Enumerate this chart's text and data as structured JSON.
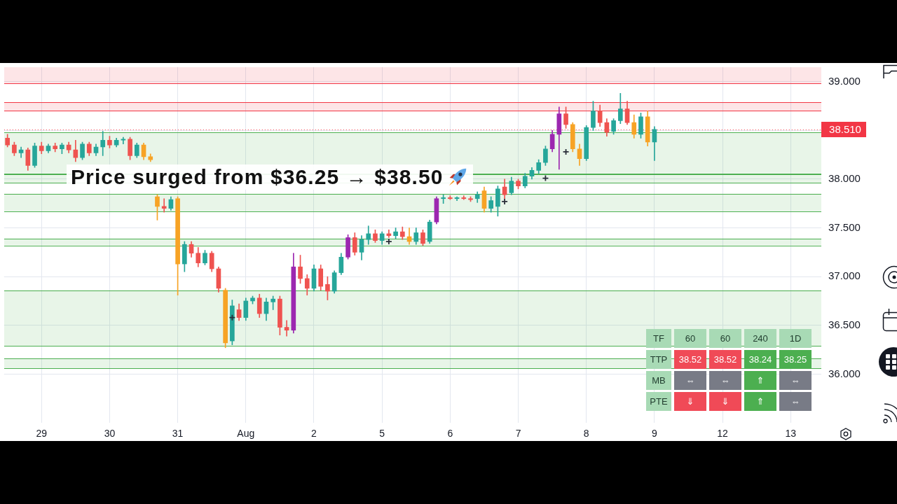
{
  "chart_data": [
    {
      "type": "candlestick",
      "categories": [
        null,
        null,
        null,
        null,
        null,
        "29",
        null,
        null,
        null,
        null,
        null,
        null,
        null,
        null,
        null,
        "30",
        null,
        null,
        null,
        null,
        null,
        null,
        null,
        null,
        null,
        "31",
        null,
        null,
        null,
        null,
        null,
        null,
        null,
        null,
        null,
        "Aug",
        null,
        null,
        null,
        null,
        null,
        null,
        null,
        null,
        null,
        "2",
        null,
        null,
        null,
        null,
        null,
        null,
        null,
        null,
        null,
        "5",
        null,
        null,
        null,
        null,
        null,
        null,
        null,
        null,
        null,
        "6",
        null,
        null,
        null,
        null,
        null,
        null,
        null,
        null,
        null,
        "7",
        null,
        null,
        null,
        null,
        null,
        null,
        null,
        null,
        null,
        "8",
        null,
        null,
        null,
        null,
        null,
        null,
        null,
        null,
        null,
        "9",
        null,
        null,
        null,
        null,
        null,
        null,
        null,
        null,
        null,
        "12",
        null,
        null,
        null,
        null,
        null,
        null,
        null,
        null,
        null,
        "13",
        null,
        null,
        null,
        null
      ],
      "ohlc": [
        [
          38.42,
          38.46,
          38.33,
          38.35
        ],
        [
          38.35,
          38.38,
          38.24,
          38.27
        ],
        [
          38.27,
          38.33,
          38.22,
          38.3
        ],
        [
          38.3,
          38.32,
          38.09,
          38.14
        ],
        [
          38.14,
          38.37,
          38.12,
          38.34
        ],
        [
          38.34,
          38.38,
          38.26,
          38.29
        ],
        [
          38.29,
          38.36,
          38.27,
          38.34
        ],
        [
          38.34,
          38.37,
          38.28,
          38.31
        ],
        [
          38.31,
          38.37,
          38.26,
          38.35
        ],
        [
          38.35,
          38.38,
          38.27,
          38.3
        ],
        [
          38.3,
          38.4,
          38.18,
          38.22
        ],
        [
          38.22,
          38.38,
          38.2,
          38.36
        ],
        [
          38.36,
          38.38,
          38.24,
          38.27
        ],
        [
          38.27,
          38.36,
          38.24,
          38.33
        ],
        [
          38.33,
          38.49,
          38.24,
          38.4
        ],
        [
          38.4,
          38.44,
          38.32,
          38.35
        ],
        [
          38.35,
          38.42,
          38.33,
          38.4
        ],
        [
          38.4,
          38.43,
          38.36,
          38.41
        ],
        [
          38.41,
          38.43,
          38.2,
          38.24
        ],
        [
          38.24,
          38.37,
          38.22,
          38.35
        ],
        [
          38.35,
          38.37,
          38.2,
          38.23
        ],
        [
          38.23,
          38.26,
          38.18,
          38.2
        ],
        [
          37.82,
          37.84,
          37.58,
          37.72
        ],
        [
          37.72,
          37.8,
          37.66,
          37.7
        ],
        [
          37.7,
          37.82,
          37.68,
          37.79
        ],
        [
          37.8,
          37.82,
          36.81,
          37.13
        ],
        [
          37.13,
          37.36,
          37.05,
          37.33
        ],
        [
          37.33,
          37.36,
          37.2,
          37.24
        ],
        [
          37.24,
          37.3,
          37.1,
          37.14
        ],
        [
          37.14,
          37.27,
          37.12,
          37.24
        ],
        [
          37.24,
          37.26,
          37.05,
          37.08
        ],
        [
          37.08,
          37.1,
          36.84,
          36.88
        ],
        [
          36.86,
          36.88,
          36.27,
          36.32
        ],
        [
          36.34,
          36.76,
          36.3,
          36.7
        ],
        [
          36.66,
          36.72,
          36.55,
          36.58
        ],
        [
          36.58,
          36.78,
          36.55,
          36.75
        ],
        [
          36.75,
          36.8,
          36.72,
          36.78
        ],
        [
          36.78,
          36.82,
          36.58,
          36.62
        ],
        [
          36.62,
          36.78,
          36.55,
          36.74
        ],
        [
          36.74,
          36.8,
          36.66,
          36.77
        ],
        [
          36.77,
          36.8,
          36.4,
          36.48
        ],
        [
          36.48,
          36.55,
          36.39,
          36.45
        ],
        [
          36.45,
          37.24,
          36.42,
          37.1
        ],
        [
          37.1,
          37.22,
          36.93,
          36.98
        ],
        [
          36.98,
          37.02,
          36.81,
          36.88
        ],
        [
          36.88,
          37.12,
          36.85,
          37.08
        ],
        [
          37.08,
          37.12,
          36.86,
          36.9
        ],
        [
          36.92,
          37,
          36.76,
          36.85
        ],
        [
          36.85,
          37.06,
          36.83,
          37.04
        ],
        [
          37.04,
          37.24,
          37.02,
          37.2
        ],
        [
          37.2,
          37.43,
          37.18,
          37.4
        ],
        [
          37.4,
          37.45,
          37.22,
          37.25
        ],
        [
          37.25,
          37.42,
          37.17,
          37.38
        ],
        [
          37.38,
          37.52,
          37.33,
          37.44
        ],
        [
          37.44,
          37.48,
          37.35,
          37.37
        ],
        [
          37.37,
          37.46,
          37.33,
          37.44
        ],
        [
          37.44,
          37.48,
          37.4,
          37.42
        ],
        [
          37.42,
          37.5,
          37.39,
          37.46
        ],
        [
          37.46,
          37.51,
          37.38,
          37.41
        ],
        [
          37.41,
          37.5,
          37.33,
          37.36
        ],
        [
          37.36,
          37.5,
          37.33,
          37.45
        ],
        [
          37.45,
          37.48,
          37.32,
          37.34
        ],
        [
          37.36,
          37.58,
          37.34,
          37.56
        ],
        [
          37.56,
          37.82,
          37.54,
          37.8
        ],
        [
          37.8,
          37.84,
          37.75,
          37.81
        ],
        [
          37.81,
          37.83,
          37.79,
          37.8
        ],
        [
          37.8,
          37.82,
          37.78,
          37.81
        ],
        [
          37.81,
          37.83,
          37.79,
          37.8
        ],
        [
          37.8,
          37.82,
          37.77,
          37.79
        ],
        [
          37.8,
          37.87,
          37.76,
          37.84
        ],
        [
          37.88,
          37.92,
          37.66,
          37.7
        ],
        [
          37.7,
          37.82,
          37.66,
          37.78
        ],
        [
          37.72,
          37.93,
          37.62,
          37.9
        ],
        [
          37.92,
          38,
          37.8,
          37.84
        ],
        [
          37.86,
          38.02,
          37.84,
          37.98
        ],
        [
          37.98,
          38,
          37.9,
          37.93
        ],
        [
          37.93,
          38.06,
          37.91,
          38.03
        ],
        [
          38.03,
          38.12,
          38,
          38.09
        ],
        [
          38.09,
          38.2,
          38.06,
          38.17
        ],
        [
          38.17,
          38.34,
          38.14,
          38.31
        ],
        [
          38.31,
          38.5,
          38.28,
          38.46
        ],
        [
          38.46,
          38.74,
          38.1,
          38.67
        ],
        [
          38.67,
          38.74,
          38.52,
          38.56
        ],
        [
          38.56,
          38.58,
          38.28,
          38.31
        ],
        [
          38.31,
          38.36,
          38.14,
          38.21
        ],
        [
          38.21,
          38.55,
          38.19,
          38.53
        ],
        [
          38.53,
          38.8,
          38.5,
          38.7
        ],
        [
          38.7,
          38.76,
          38.54,
          38.58
        ],
        [
          38.58,
          38.62,
          38.44,
          38.48
        ],
        [
          38.49,
          38.62,
          38.46,
          38.6
        ],
        [
          38.6,
          38.88,
          38.57,
          38.72
        ],
        [
          38.72,
          38.8,
          38.56,
          38.58
        ],
        [
          38.58,
          38.66,
          38.42,
          38.46
        ],
        [
          38.46,
          38.68,
          38.42,
          38.64
        ],
        [
          38.64,
          38.7,
          38.34,
          38.38
        ],
        [
          38.38,
          38.54,
          38.19,
          38.51
        ],
        null,
        null,
        null,
        null,
        null,
        null,
        null,
        null,
        null,
        null,
        null,
        null,
        null,
        null,
        null,
        null,
        null,
        null,
        null,
        null,
        null,
        null,
        null,
        null
      ],
      "colors": [
        "#ef5350",
        "#ef5350",
        "#26a69a",
        "#ef5350",
        "#26a69a",
        "#ef5350",
        "#26a69a",
        "#ef5350",
        "#26a69a",
        "#ef5350",
        "#ef5350",
        "#26a69a",
        "#ef5350",
        "#26a69a",
        "#26a69a",
        "#ef5350",
        "#26a69a",
        "#26a69a",
        "#ef5350",
        "#26a69a",
        "#f7a325",
        "#f7a325",
        "#f7a325",
        "#ef5350",
        "#26a69a",
        "#f7a325",
        "#26a69a",
        "#ef5350",
        "#ef5350",
        "#26a69a",
        "#ef5350",
        "#ef5350",
        "#f7a325",
        "#26a69a",
        "#ef5350",
        "#26a69a",
        "#26a69a",
        "#ef5350",
        "#26a69a",
        "#26a69a",
        "#ef5350",
        "#ef5350",
        "#9c27b0",
        "#ef5350",
        "#ef5350",
        "#26a69a",
        "#ef5350",
        "#ef5350",
        "#26a69a",
        "#26a69a",
        "#9c27b0",
        "#ef5350",
        "#26a69a",
        "#26a69a",
        "#ef5350",
        "#26a69a",
        "#ef5350",
        "#26a69a",
        "#ef5350",
        "#f7a325",
        "#26a69a",
        "#ef5350",
        "#26a69a",
        "#9c27b0",
        "#26a69a",
        "#ef5350",
        "#26a69a",
        "#ef5350",
        "#ef5350",
        "#26a69a",
        "#f7a325",
        "#26a69a",
        "#26a69a",
        "#ef5350",
        "#26a69a",
        "#ef5350",
        "#26a69a",
        "#26a69a",
        "#26a69a",
        "#26a69a",
        "#9c27b0",
        "#9c27b0",
        "#ef5350",
        "#f7a325",
        "#f7a325",
        "#26a69a",
        "#26a69a",
        "#ef5350",
        "#ef5350",
        "#26a69a",
        "#26a69a",
        "#ef5350",
        "#f7a325",
        "#26a69a",
        "#f7a325",
        "#26a69a",
        null,
        null,
        null,
        null,
        null,
        null,
        null,
        null,
        null,
        null,
        null,
        null,
        null,
        null,
        null,
        null,
        null,
        null,
        null,
        null,
        null,
        null,
        null,
        null
      ],
      "series": [
        {
          "type": "scatter",
          "marker": "cross",
          "color": "#2a2e39",
          "values": [
            null,
            null,
            null,
            null,
            null,
            null,
            null,
            null,
            null,
            null,
            null,
            null,
            null,
            null,
            null,
            null,
            null,
            null,
            null,
            null,
            null,
            null,
            null,
            null,
            null,
            null,
            null,
            null,
            null,
            null,
            null,
            null,
            null,
            36.58,
            null,
            null,
            null,
            null,
            null,
            null,
            null,
            null,
            null,
            null,
            null,
            null,
            null,
            null,
            null,
            null,
            null,
            null,
            null,
            null,
            null,
            null,
            37.36,
            null,
            null,
            null,
            null,
            null,
            null,
            null,
            null,
            null,
            null,
            null,
            null,
            null,
            null,
            null,
            null,
            37.77,
            null,
            null,
            null,
            null,
            null,
            38.01,
            null,
            null,
            38.28,
            null,
            null,
            null,
            null,
            null,
            null,
            null,
            null,
            null,
            null,
            null,
            null,
            null,
            null,
            null,
            null,
            null,
            null,
            null,
            null,
            null,
            null,
            null,
            null,
            null,
            null,
            null,
            null,
            null,
            null,
            null,
            null,
            null,
            null,
            null,
            null,
            null
          ]
        }
      ],
      "ylim": [
        35.5,
        39.15
      ],
      "yticks": [
        {
          "value": 36,
          "label": "36.000"
        },
        {
          "value": 36.5,
          "label": "36.500"
        },
        {
          "value": 37,
          "label": "37.000"
        },
        {
          "value": 37.5,
          "label": "37.500"
        },
        {
          "value": 38,
          "label": "38.000"
        },
        {
          "value": 38.5,
          "label": null
        },
        {
          "value": 39,
          "label": "39.000"
        }
      ],
      "grid": true,
      "bands": [
        {
          "axis": "y",
          "from": 38.98,
          "to": 39.15,
          "color": "#f23645"
        },
        {
          "axis": "y",
          "from": 38.7,
          "to": 38.79,
          "color": "#f23645"
        },
        {
          "axis": "y",
          "from": 38.06,
          "to": 38.48,
          "color": "#4caf50"
        },
        {
          "axis": "y",
          "from": 37.96,
          "to": 38.05,
          "color": "#4caf50"
        },
        {
          "axis": "y",
          "from": 37.67,
          "to": 37.85,
          "color": "#4caf50"
        },
        {
          "axis": "y",
          "from": 37.32,
          "to": 37.39,
          "color": "#4caf50"
        },
        {
          "axis": "y",
          "from": 36.29,
          "to": 36.86,
          "color": "#4caf50"
        },
        {
          "axis": "y",
          "from": 36.06,
          "to": 36.16,
          "color": "#4caf50"
        }
      ],
      "ref_lines": [
        {
          "axis": "y",
          "value": 38.98,
          "color": "#f23645"
        },
        {
          "axis": "y",
          "value": 38.79,
          "color": "#f23645"
        },
        {
          "axis": "y",
          "value": 38.7,
          "color": "#f23645"
        },
        {
          "axis": "y",
          "value": 38.48,
          "color": "#4caf50"
        },
        {
          "axis": "y",
          "value": 38.06,
          "color": "#4caf50"
        },
        {
          "axis": "y",
          "value": 38.05,
          "color": "#4caf50"
        },
        {
          "axis": "y",
          "value": 37.96,
          "color": "#4caf50"
        },
        {
          "axis": "y",
          "value": 37.85,
          "color": "#4caf50"
        },
        {
          "axis": "y",
          "value": 37.67,
          "color": "#4caf50"
        },
        {
          "axis": "y",
          "value": 37.39,
          "color": "#4caf50"
        },
        {
          "axis": "y",
          "value": 37.32,
          "color": "#4caf50"
        },
        {
          "axis": "y",
          "value": 36.86,
          "color": "#4caf50"
        },
        {
          "axis": "y",
          "value": 36.29,
          "color": "#4caf50"
        },
        {
          "axis": "y",
          "value": 36.16,
          "color": "#4caf50"
        },
        {
          "axis": "y",
          "value": 36.06,
          "color": "#4caf50"
        },
        {
          "axis": "y",
          "value": 38.51,
          "label": "38.510",
          "color": "#f23645",
          "line_style": "dotted"
        }
      ],
      "annotations": [
        "Price surged from $36.25 → $38.50"
      ]
    },
    {
      "type": "other",
      "y_categories": [
        "TF",
        "TTP",
        "MB",
        "PTE"
      ],
      "color": "#a8dab5",
      "cell_labels": [
        [
          "60",
          "60",
          "240",
          "1D"
        ],
        [
          "38.52",
          "38.52",
          "38.24",
          "38.25"
        ],
        [
          "⇔",
          "⇔",
          "⇑",
          "⇔"
        ],
        [
          "⇓",
          "⇓",
          "⇑",
          "⇔"
        ]
      ],
      "colors": [
        [
          "#a8dab5",
          "#a8dab5",
          "#a8dab5",
          "#a8dab5"
        ],
        [
          "#f04a57",
          "#f04a57",
          "#4caf50",
          "#4caf50"
        ],
        [
          "#787b86",
          "#787b86",
          "#4caf50",
          "#787b86"
        ],
        [
          "#f04a57",
          "#f04a57",
          "#4caf50",
          "#787b86"
        ]
      ]
    }
  ]
}
